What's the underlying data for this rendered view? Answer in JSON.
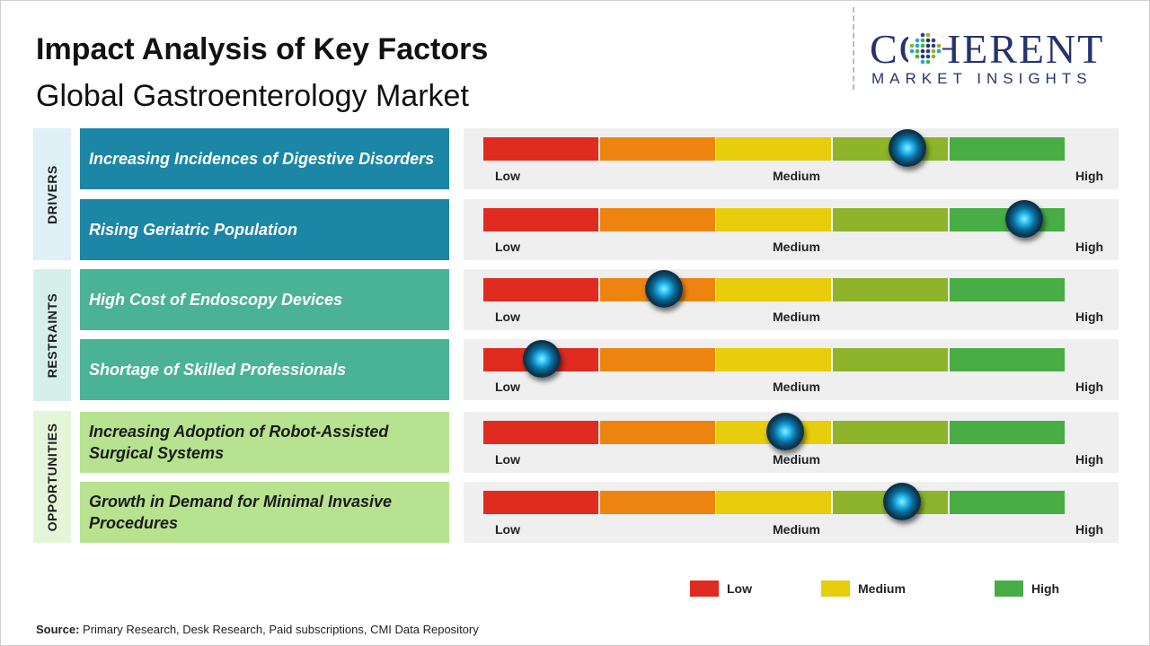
{
  "title": "Impact Analysis of Key Factors",
  "subtitle": "Global Gastroenterology Market",
  "logo": {
    "brand": "COHERENT",
    "tagline": "MARKET INSIGHTS"
  },
  "scale": {
    "low_label": "Low",
    "medium_label": "Medium",
    "high_label": "High"
  },
  "colors": {
    "segments": [
      "#e02b20",
      "#ee8410",
      "#e7cd0b",
      "#8db42a",
      "#47ad44"
    ],
    "drivers": "#1b86a6",
    "restraints": "#4bb395",
    "opportunities": "#b7e28f",
    "drivers_band": "#dff0f7",
    "restraints_band": "#d7efea",
    "opportunities_band": "#e5f5da"
  },
  "categories": [
    {
      "label": "DRIVERS",
      "key": "drivers"
    },
    {
      "label": "RESTRAINTS",
      "key": "restraints"
    },
    {
      "label": "OPPORTUNITIES",
      "key": "opportunities"
    }
  ],
  "chart_data": {
    "type": "gauge",
    "scale": [
      "Low",
      "Medium",
      "High"
    ],
    "factors": [
      {
        "category": "DRIVERS",
        "label": "Increasing Incidences of Digestive Disorders",
        "impact": 0.73
      },
      {
        "category": "DRIVERS",
        "label": "Rising Geriatric Population",
        "impact": 0.93
      },
      {
        "category": "RESTRAINTS",
        "label": "High Cost of Endoscopy Devices",
        "impact": 0.31
      },
      {
        "category": "RESTRAINTS",
        "label": "Shortage of Skilled Professionals",
        "impact": 0.1
      },
      {
        "category": "OPPORTUNITIES",
        "label": "Increasing Adoption of Robot-Assisted Surgical Systems",
        "impact": 0.52
      },
      {
        "category": "OPPORTUNITIES",
        "label": "Growth in Demand for Minimal Invasive Procedures",
        "impact": 0.72
      }
    ]
  },
  "legend": [
    {
      "label": "Low",
      "color": "#e02b20"
    },
    {
      "label": "Medium",
      "color": "#e7cd0b"
    },
    {
      "label": "High",
      "color": "#47ad44"
    }
  ],
  "source": {
    "prefix": "Source:",
    "text": "Primary Research, Desk Research, Paid subscriptions, CMI Data Repository"
  }
}
